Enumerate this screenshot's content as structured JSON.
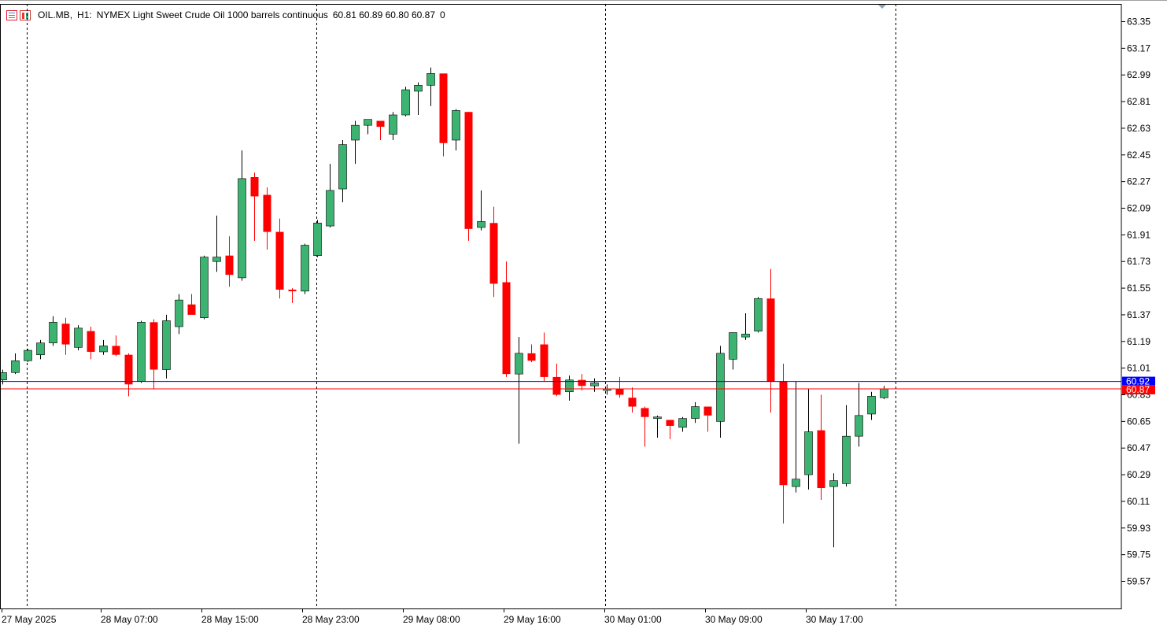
{
  "symbol_header": {
    "symbol": "OIL.MB",
    "timeframe": "H1:",
    "description": "NYMEX Light Sweet Crude Oil 1000 barrels continuous",
    "ohlc": "60.81 60.89 60.80 60.87",
    "volume": "0"
  },
  "price_axis": {
    "labels": [
      "63.35",
      "63.17",
      "62.99",
      "62.81",
      "62.63",
      "62.45",
      "62.27",
      "62.09",
      "61.91",
      "61.73",
      "61.55",
      "61.37",
      "61.19",
      "61.01",
      "60.83",
      "60.65",
      "60.47",
      "60.29",
      "60.11",
      "59.93",
      "59.75",
      "59.57"
    ],
    "bid_label": "60.87",
    "ask_label": "60.92"
  },
  "time_axis": {
    "labels": [
      "27 May 2025",
      "28 May 07:00",
      "28 May 15:00",
      "28 May 23:00",
      "29 May 08:00",
      "29 May 16:00",
      "30 May 01:00",
      "30 May 09:00",
      "30 May 17:00"
    ]
  },
  "colors": {
    "bull": "#3cb371",
    "bear": "#ff0000",
    "ask_line": "#0000ff",
    "bid_line": "#ff0000",
    "ask_label_bg": "#0000ff",
    "bid_label_bg": "#ff0000"
  },
  "chart_data": {
    "type": "candlestick",
    "title": "OIL.MB, H1",
    "y_range": [
      59.43,
      63.42
    ],
    "bid": 60.87,
    "ask": 60.92,
    "grid": false,
    "candles": [
      {
        "o": 60.93,
        "h": 61.0,
        "l": 60.9,
        "c": 60.98
      },
      {
        "o": 60.98,
        "h": 61.11,
        "l": 60.97,
        "c": 61.06
      },
      {
        "o": 61.06,
        "h": 61.14,
        "l": 61.05,
        "c": 61.13
      },
      {
        "o": 61.1,
        "h": 61.2,
        "l": 61.07,
        "c": 61.18
      },
      {
        "o": 61.18,
        "h": 61.36,
        "l": 61.16,
        "c": 61.32
      },
      {
        "o": 61.31,
        "h": 61.35,
        "l": 61.1,
        "c": 61.17
      },
      {
        "o": 61.15,
        "h": 61.3,
        "l": 61.13,
        "c": 61.28
      },
      {
        "o": 61.26,
        "h": 61.29,
        "l": 61.07,
        "c": 61.12
      },
      {
        "o": 61.12,
        "h": 61.2,
        "l": 61.1,
        "c": 61.16
      },
      {
        "o": 61.16,
        "h": 61.23,
        "l": 61.09,
        "c": 61.1
      },
      {
        "o": 61.1,
        "h": 61.11,
        "l": 60.82,
        "c": 60.9
      },
      {
        "o": 60.92,
        "h": 61.33,
        "l": 60.91,
        "c": 61.32
      },
      {
        "o": 61.32,
        "h": 61.34,
        "l": 60.87,
        "c": 61.0
      },
      {
        "o": 61.0,
        "h": 61.37,
        "l": 60.94,
        "c": 61.33
      },
      {
        "o": 61.29,
        "h": 61.51,
        "l": 61.24,
        "c": 61.47
      },
      {
        "o": 61.44,
        "h": 61.51,
        "l": 61.39,
        "c": 61.37
      },
      {
        "o": 61.35,
        "h": 61.77,
        "l": 61.34,
        "c": 61.76
      },
      {
        "o": 61.73,
        "h": 62.04,
        "l": 61.66,
        "c": 61.76
      },
      {
        "o": 61.77,
        "h": 61.9,
        "l": 61.56,
        "c": 61.64
      },
      {
        "o": 61.62,
        "h": 62.48,
        "l": 61.6,
        "c": 62.29
      },
      {
        "o": 62.3,
        "h": 62.33,
        "l": 61.87,
        "c": 62.17
      },
      {
        "o": 62.18,
        "h": 62.23,
        "l": 61.81,
        "c": 61.93
      },
      {
        "o": 61.93,
        "h": 62.02,
        "l": 61.48,
        "c": 61.54
      },
      {
        "o": 61.54,
        "h": 61.55,
        "l": 61.45,
        "c": 61.53
      },
      {
        "o": 61.53,
        "h": 61.85,
        "l": 61.51,
        "c": 61.84
      },
      {
        "o": 61.77,
        "h": 62.01,
        "l": 61.76,
        "c": 61.99
      },
      {
        "o": 61.97,
        "h": 62.39,
        "l": 61.96,
        "c": 62.21
      },
      {
        "o": 62.22,
        "h": 62.55,
        "l": 62.13,
        "c": 62.52
      },
      {
        "o": 62.55,
        "h": 62.68,
        "l": 62.39,
        "c": 62.65
      },
      {
        "o": 62.65,
        "h": 62.68,
        "l": 62.59,
        "c": 62.69
      },
      {
        "o": 62.68,
        "h": 62.67,
        "l": 62.55,
        "c": 62.64
      },
      {
        "o": 62.59,
        "h": 62.74,
        "l": 62.55,
        "c": 62.72
      },
      {
        "o": 62.72,
        "h": 62.91,
        "l": 62.71,
        "c": 62.89
      },
      {
        "o": 62.88,
        "h": 62.94,
        "l": 62.72,
        "c": 62.92
      },
      {
        "o": 62.92,
        "h": 63.04,
        "l": 62.78,
        "c": 63.0
      },
      {
        "o": 63.0,
        "h": 62.99,
        "l": 62.44,
        "c": 62.53
      },
      {
        "o": 62.55,
        "h": 62.76,
        "l": 62.48,
        "c": 62.75
      },
      {
        "o": 62.74,
        "h": 62.74,
        "l": 61.87,
        "c": 61.95
      },
      {
        "o": 61.96,
        "h": 62.21,
        "l": 61.94,
        "c": 62.0
      },
      {
        "o": 61.99,
        "h": 62.1,
        "l": 61.49,
        "c": 61.58
      },
      {
        "o": 61.59,
        "h": 61.73,
        "l": 60.95,
        "c": 60.97
      },
      {
        "o": 60.97,
        "h": 61.22,
        "l": 60.5,
        "c": 61.11
      },
      {
        "o": 61.11,
        "h": 61.17,
        "l": 61.05,
        "c": 61.06
      },
      {
        "o": 61.17,
        "h": 61.25,
        "l": 60.92,
        "c": 60.95
      },
      {
        "o": 60.95,
        "h": 61.04,
        "l": 60.82,
        "c": 60.83
      },
      {
        "o": 60.85,
        "h": 60.96,
        "l": 60.79,
        "c": 60.93
      },
      {
        "o": 60.93,
        "h": 60.97,
        "l": 60.86,
        "c": 60.89
      },
      {
        "o": 60.89,
        "h": 60.94,
        "l": 60.85,
        "c": 60.91
      },
      {
        "o": 60.86,
        "h": 60.9,
        "l": 60.83,
        "c": 60.87
      },
      {
        "o": 60.87,
        "h": 60.95,
        "l": 60.81,
        "c": 60.83
      },
      {
        "o": 60.81,
        "h": 60.88,
        "l": 60.71,
        "c": 60.75
      },
      {
        "o": 60.74,
        "h": 60.75,
        "l": 60.48,
        "c": 60.68
      },
      {
        "o": 60.68,
        "h": 60.69,
        "l": 60.54,
        "c": 60.68
      },
      {
        "o": 60.66,
        "h": 60.66,
        "l": 60.53,
        "c": 60.62
      },
      {
        "o": 60.61,
        "h": 60.68,
        "l": 60.58,
        "c": 60.67
      },
      {
        "o": 60.67,
        "h": 60.78,
        "l": 60.64,
        "c": 60.75
      },
      {
        "o": 60.75,
        "h": 60.75,
        "l": 60.58,
        "c": 60.69
      },
      {
        "o": 60.65,
        "h": 61.16,
        "l": 60.54,
        "c": 61.11
      },
      {
        "o": 61.07,
        "h": 61.25,
        "l": 61.0,
        "c": 61.25
      },
      {
        "o": 61.22,
        "h": 61.38,
        "l": 61.2,
        "c": 61.24
      },
      {
        "o": 61.26,
        "h": 61.49,
        "l": 61.25,
        "c": 61.48
      },
      {
        "o": 61.48,
        "h": 61.68,
        "l": 60.71,
        "c": 60.92
      },
      {
        "o": 60.92,
        "h": 61.04,
        "l": 59.96,
        "c": 60.22
      },
      {
        "o": 60.21,
        "h": 60.92,
        "l": 60.17,
        "c": 60.26
      },
      {
        "o": 60.29,
        "h": 60.87,
        "l": 60.19,
        "c": 60.58
      },
      {
        "o": 60.59,
        "h": 60.83,
        "l": 60.12,
        "c": 60.2
      },
      {
        "o": 60.21,
        "h": 60.3,
        "l": 59.8,
        "c": 60.25
      },
      {
        "o": 60.23,
        "h": 60.76,
        "l": 60.21,
        "c": 60.55
      },
      {
        "o": 60.55,
        "h": 60.91,
        "l": 60.48,
        "c": 60.69
      },
      {
        "o": 60.7,
        "h": 60.85,
        "l": 60.66,
        "c": 60.82
      },
      {
        "o": 60.81,
        "h": 60.89,
        "l": 60.8,
        "c": 60.87
      }
    ]
  }
}
